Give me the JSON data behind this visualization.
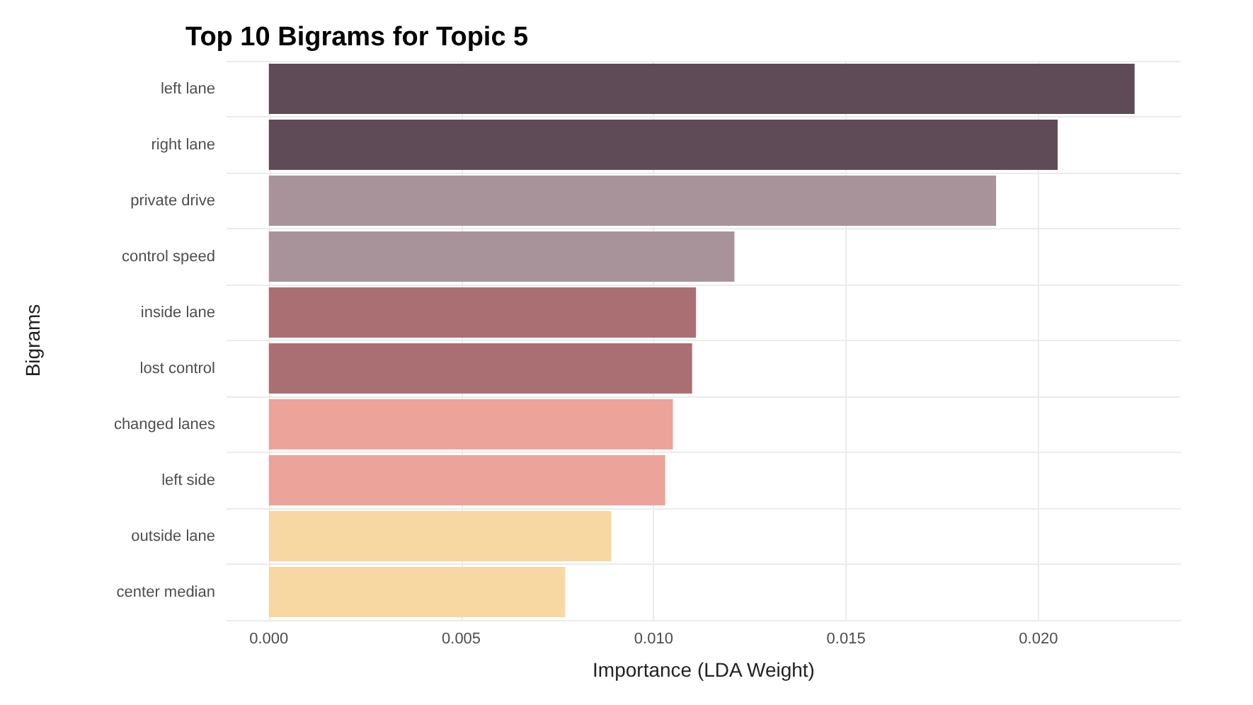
{
  "chart_data": {
    "type": "bar",
    "orientation": "horizontal",
    "title": "Top 10 Bigrams for Topic 5",
    "xlabel": "Importance (LDA Weight)",
    "ylabel": "Bigrams",
    "categories": [
      "left lane",
      "right lane",
      "private drive",
      "control speed",
      "inside lane",
      "lost control",
      "changed lanes",
      "left side",
      "outside lane",
      "center median"
    ],
    "values": [
      0.0225,
      0.0205,
      0.0189,
      0.0121,
      0.0111,
      0.011,
      0.0105,
      0.0103,
      0.0089,
      0.0077
    ],
    "colors": [
      "#5f4b58",
      "#5f4b58",
      "#a9939a",
      "#a9939a",
      "#aa6f72",
      "#aa6f72",
      "#eba39a",
      "#eba39a",
      "#f7d7a2",
      "#f7d7a2"
    ],
    "xlim": [
      -0.0011,
      0.0237
    ],
    "xticks": [
      {
        "value": 0,
        "label": "0.000"
      },
      {
        "value": 0.005,
        "label": "0.005"
      },
      {
        "value": 0.01,
        "label": "0.010"
      },
      {
        "value": 0.015,
        "label": "0.015"
      },
      {
        "value": 0.02,
        "label": "0.020"
      }
    ],
    "grid": true
  }
}
